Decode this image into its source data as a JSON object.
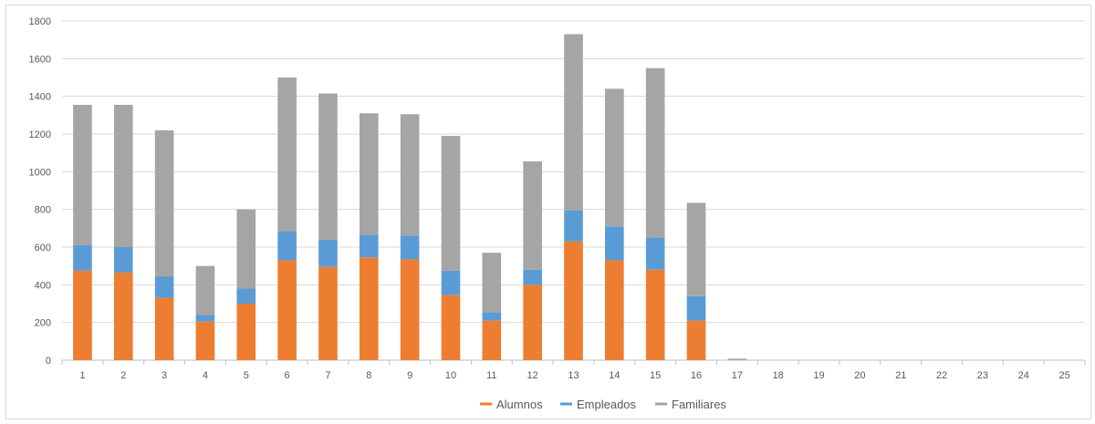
{
  "chart_data": {
    "type": "bar",
    "stacked": true,
    "title": "",
    "xlabel": "",
    "ylabel": "",
    "ylim": [
      0,
      1800
    ],
    "yticks": [
      0,
      200,
      400,
      600,
      800,
      1000,
      1200,
      1400,
      1600,
      1800
    ],
    "grid": true,
    "legend_position": "bottom",
    "categories": [
      "1",
      "2",
      "3",
      "4",
      "5",
      "6",
      "7",
      "8",
      "9",
      "10",
      "11",
      "12",
      "13",
      "14",
      "15",
      "16",
      "17",
      "18",
      "19",
      "20",
      "21",
      "22",
      "23",
      "24",
      "25"
    ],
    "series": [
      {
        "name": "Alumnos",
        "color": "#ed7d31",
        "values": [
          475,
          465,
          330,
          205,
          300,
          530,
          495,
          545,
          535,
          345,
          210,
          400,
          630,
          530,
          480,
          210,
          0,
          0,
          0,
          0,
          0,
          0,
          0,
          0,
          0
        ]
      },
      {
        "name": "Empleados",
        "color": "#5b9bd5",
        "values": [
          135,
          135,
          115,
          35,
          80,
          155,
          145,
          120,
          125,
          130,
          45,
          80,
          165,
          180,
          170,
          130,
          0,
          0,
          0,
          0,
          0,
          0,
          0,
          0,
          0
        ]
      },
      {
        "name": "Familiares",
        "color": "#a5a5a5",
        "values": [
          745,
          755,
          775,
          260,
          420,
          815,
          775,
          645,
          645,
          715,
          315,
          575,
          935,
          730,
          900,
          495,
          8,
          0,
          0,
          0,
          0,
          0,
          0,
          0,
          0
        ]
      }
    ]
  }
}
